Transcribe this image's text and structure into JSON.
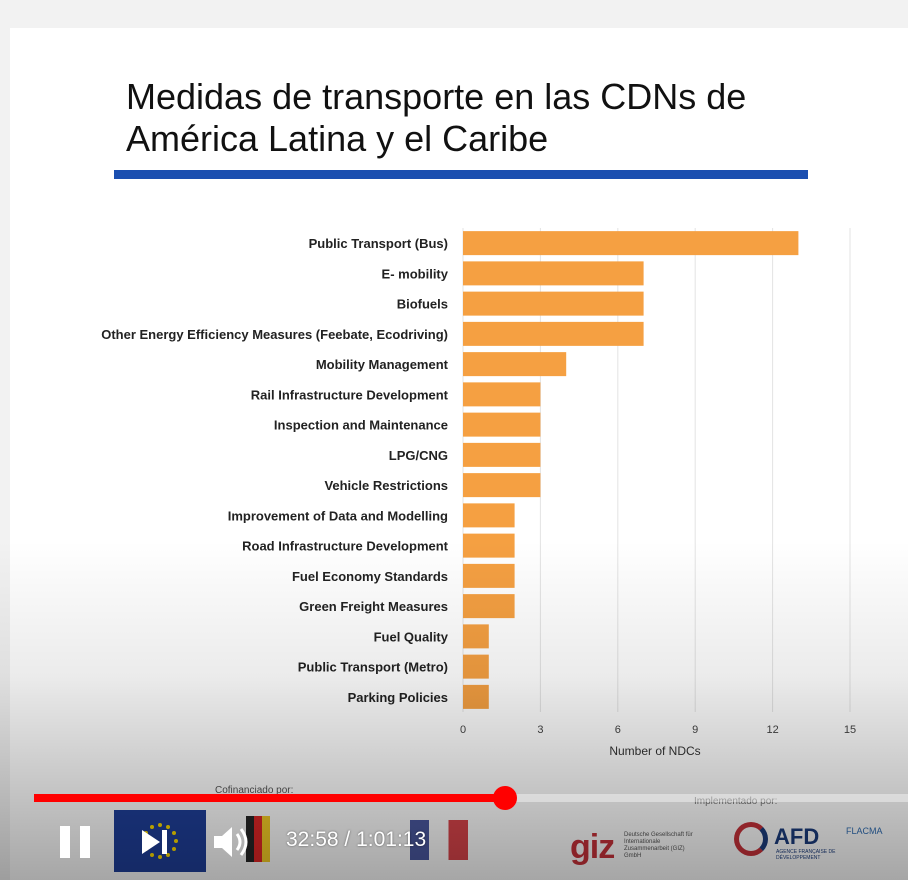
{
  "slide": {
    "title_line1": "Medidas de transporte en las CDNs de",
    "title_line2": "América Latina y el Caribe"
  },
  "chart_data": {
    "type": "bar",
    "orientation": "horizontal",
    "categories": [
      "Public Transport (Bus)",
      "E- mobility",
      "Biofuels",
      "Other Energy Efficiency Measures (Feebate, Ecodriving)",
      "Mobility Management",
      "Rail Infrastructure Development",
      "Inspection and Maintenance",
      "LPG/CNG",
      "Vehicle Restrictions",
      "Improvement of Data and Modelling",
      "Road Infrastructure Development",
      "Fuel Economy Standards",
      "Green Freight Measures",
      "Fuel Quality",
      "Public Transport (Metro)",
      "Parking Policies"
    ],
    "values": [
      13,
      7,
      7,
      7,
      4,
      3,
      3,
      3,
      3,
      2,
      2,
      2,
      2,
      1,
      1,
      1
    ],
    "xlabel": "Number of NDCs",
    "xlim": [
      0,
      15
    ],
    "xticks": [
      "0",
      "3",
      "6",
      "9",
      "12",
      "15"
    ],
    "bar_color": "#f5a042",
    "grid": "vertical"
  },
  "footer": {
    "cofinanced_label": "Cofinanciado por:",
    "implemented_label": "Implementado por:",
    "giz_name": "giz",
    "giz_caption": "Deutsche Gesellschaft für Internationale Zusammenarbeit (GIZ) GmbH",
    "afd_name": "AFD",
    "afd_caption": "AGENCE FRANÇAISE DE DÉVELOPPEMENT",
    "flacma_name": "FLACMA"
  },
  "player": {
    "current_time": "32:58",
    "separator": " / ",
    "duration": "1:01:13",
    "progress_fraction": 0.5385,
    "accent_color": "#ff0000",
    "play_state": "playing",
    "icons": {
      "pause": "pause-icon",
      "next": "next-icon",
      "volume": "volume-icon"
    }
  }
}
